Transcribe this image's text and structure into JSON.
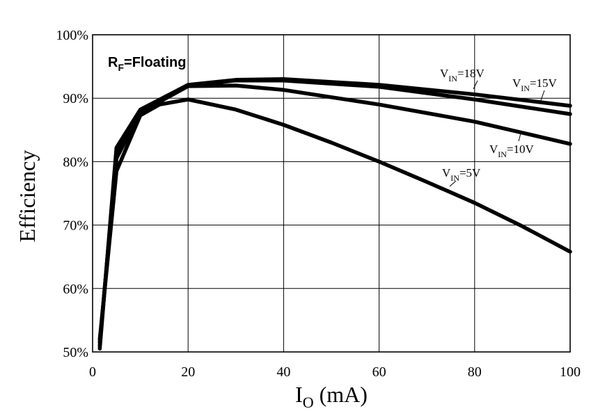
{
  "chart_data": {
    "type": "line",
    "x_axis": {
      "label_main": "I",
      "label_sub": "O",
      "label_unit": " (mA)",
      "range": [
        0,
        100
      ],
      "ticks": [
        0,
        20,
        40,
        60,
        80,
        100
      ],
      "tick_labels": [
        "0",
        "20",
        "40",
        "60",
        "80",
        "100"
      ]
    },
    "y_axis": {
      "label": "Efficiency",
      "range": [
        50,
        100
      ],
      "ticks": [
        50,
        60,
        70,
        80,
        90,
        100
      ],
      "tick_labels": [
        "50%",
        "60%",
        "70%",
        "80%",
        "90%",
        "100%"
      ]
    },
    "grid": true,
    "annotation": {
      "main": "R",
      "sub": "F",
      "rest": "=Floating"
    },
    "series": [
      {
        "label_main": "V",
        "label_sub": "IN",
        "label_rest": "=18V",
        "points": [
          [
            1.5,
            50.5
          ],
          [
            5,
            82.2
          ],
          [
            10,
            88.2
          ],
          [
            20,
            92.1
          ],
          [
            30,
            92.9
          ],
          [
            40,
            93.0
          ],
          [
            60,
            92.1
          ],
          [
            80,
            90.6
          ],
          [
            100,
            88.8
          ]
        ]
      },
      {
        "label_main": "V",
        "label_sub": "IN",
        "label_rest": "=15V",
        "points": [
          [
            1.5,
            51.0
          ],
          [
            5,
            81.5
          ],
          [
            10,
            88.0
          ],
          [
            20,
            92.0
          ],
          [
            30,
            92.8
          ],
          [
            40,
            92.8
          ],
          [
            60,
            91.8
          ],
          [
            80,
            89.8
          ],
          [
            100,
            87.5
          ]
        ]
      },
      {
        "label_main": "V",
        "label_sub": "IN",
        "label_rest": "=10V",
        "points": [
          [
            1.5,
            51.5
          ],
          [
            5,
            80.5
          ],
          [
            10,
            87.8
          ],
          [
            20,
            91.9
          ],
          [
            30,
            92.0
          ],
          [
            40,
            91.3
          ],
          [
            60,
            89.0
          ],
          [
            80,
            86.3
          ],
          [
            100,
            82.8
          ]
        ]
      },
      {
        "label_main": "V",
        "label_sub": "IN",
        "label_rest": "=5V",
        "points": [
          [
            1.5,
            52.0
          ],
          [
            5,
            78.5
          ],
          [
            10,
            87.3
          ],
          [
            14,
            89.0
          ],
          [
            20,
            89.8
          ],
          [
            30,
            88.2
          ],
          [
            40,
            85.8
          ],
          [
            50,
            83.0
          ],
          [
            60,
            80.0
          ],
          [
            70,
            76.8
          ],
          [
            80,
            73.5
          ],
          [
            90,
            69.8
          ],
          [
            100,
            65.8
          ]
        ]
      }
    ]
  }
}
